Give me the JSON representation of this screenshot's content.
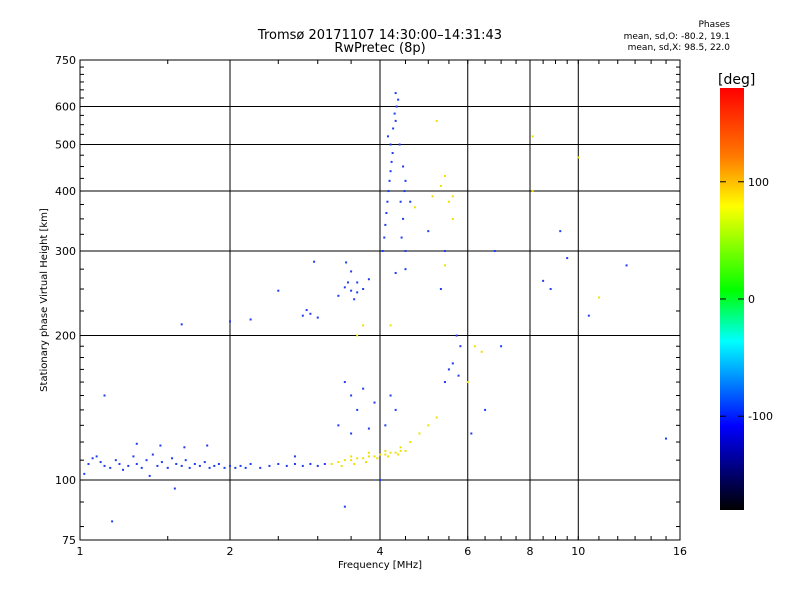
{
  "header": {
    "title_line1": "Tromsø 20171107 14:30:00–14:31:43",
    "title_line2": "RwPretec (8p)",
    "phases_title": "Phases",
    "phases_o": "mean, sd,O: -80.2, 19.1",
    "phases_x": "mean, sd,X:  98.5, 22.0"
  },
  "colorbar": {
    "label": "[deg]",
    "min": -180,
    "max": 180,
    "ticks": [
      {
        "value": 100,
        "label": "100"
      },
      {
        "value": 0,
        "label": "0"
      },
      {
        "value": -100,
        "label": "-100"
      }
    ]
  },
  "chart_data": {
    "type": "scatter",
    "xlabel": "Frequency [MHz]",
    "ylabel": "Stationary phase Virtual Height [km]",
    "xscale": "log",
    "yscale": "log",
    "xlim": [
      1,
      16
    ],
    "ylim": [
      75,
      750
    ],
    "x_ticks": [
      1,
      2,
      4,
      6,
      8,
      10,
      16
    ],
    "y_ticks": [
      75,
      100,
      200,
      300,
      400,
      500,
      600,
      750
    ],
    "x_major_grid": [
      2,
      4,
      6,
      8,
      10
    ],
    "y_major_grid": [
      100,
      200,
      300,
      400,
      500,
      600
    ],
    "grid": true,
    "series": [
      {
        "mode": "O",
        "color": "#1e3cf0",
        "points": [
          [
            1.02,
            103
          ],
          [
            1.04,
            108
          ],
          [
            1.06,
            111
          ],
          [
            1.08,
            112
          ],
          [
            1.1,
            109
          ],
          [
            1.12,
            107
          ],
          [
            1.15,
            106
          ],
          [
            1.18,
            110
          ],
          [
            1.2,
            108
          ],
          [
            1.22,
            105
          ],
          [
            1.25,
            107
          ],
          [
            1.28,
            112
          ],
          [
            1.3,
            108
          ],
          [
            1.33,
            106
          ],
          [
            1.36,
            110
          ],
          [
            1.4,
            113
          ],
          [
            1.43,
            107
          ],
          [
            1.46,
            109
          ],
          [
            1.5,
            106
          ],
          [
            1.53,
            111
          ],
          [
            1.56,
            108
          ],
          [
            1.6,
            107
          ],
          [
            1.63,
            110
          ],
          [
            1.66,
            106
          ],
          [
            1.7,
            108
          ],
          [
            1.74,
            107
          ],
          [
            1.78,
            109
          ],
          [
            1.82,
            106
          ],
          [
            1.86,
            107
          ],
          [
            1.9,
            108
          ],
          [
            1.95,
            106
          ],
          [
            2.0,
            107
          ],
          [
            2.05,
            106
          ],
          [
            2.1,
            107
          ],
          [
            2.15,
            106
          ],
          [
            2.2,
            108
          ],
          [
            2.3,
            106
          ],
          [
            2.4,
            107
          ],
          [
            2.5,
            108
          ],
          [
            2.6,
            107
          ],
          [
            2.7,
            108
          ],
          [
            2.8,
            107
          ],
          [
            2.9,
            108
          ],
          [
            3.0,
            107
          ],
          [
            3.1,
            108
          ],
          [
            1.3,
            119
          ],
          [
            1.45,
            118
          ],
          [
            1.62,
            117
          ],
          [
            1.8,
            118
          ],
          [
            1.38,
            102
          ],
          [
            1.55,
            96
          ],
          [
            1.16,
            82
          ],
          [
            1.12,
            150
          ],
          [
            1.6,
            211
          ],
          [
            2.5,
            248
          ],
          [
            2.0,
            214
          ],
          [
            2.2,
            216
          ],
          [
            2.8,
            220
          ],
          [
            2.85,
            226
          ],
          [
            2.9,
            222
          ],
          [
            3.0,
            218
          ],
          [
            3.3,
            242
          ],
          [
            3.4,
            252
          ],
          [
            3.45,
            258
          ],
          [
            3.5,
            248
          ],
          [
            3.55,
            238
          ],
          [
            3.6,
            246
          ],
          [
            3.42,
            284
          ],
          [
            3.5,
            272
          ],
          [
            3.6,
            258
          ],
          [
            3.7,
            250
          ],
          [
            3.8,
            262
          ],
          [
            3.4,
            160
          ],
          [
            3.5,
            150
          ],
          [
            3.6,
            140
          ],
          [
            3.7,
            155
          ],
          [
            3.3,
            130
          ],
          [
            3.5,
            125
          ],
          [
            3.8,
            128
          ],
          [
            3.9,
            145
          ],
          [
            3.4,
            88
          ],
          [
            4.0,
            100
          ],
          [
            2.7,
            112
          ],
          [
            2.95,
            285
          ],
          [
            4.05,
            300
          ],
          [
            4.08,
            320
          ],
          [
            4.1,
            340
          ],
          [
            4.12,
            360
          ],
          [
            4.14,
            380
          ],
          [
            4.16,
            400
          ],
          [
            4.18,
            420
          ],
          [
            4.2,
            440
          ],
          [
            4.22,
            460
          ],
          [
            4.24,
            480
          ],
          [
            4.2,
            500
          ],
          [
            4.15,
            520
          ],
          [
            4.25,
            540
          ],
          [
            4.3,
            560
          ],
          [
            4.28,
            580
          ],
          [
            4.32,
            600
          ],
          [
            4.35,
            620
          ],
          [
            4.3,
            640
          ],
          [
            4.4,
            380
          ],
          [
            4.45,
            350
          ],
          [
            4.42,
            320
          ],
          [
            4.5,
            300
          ],
          [
            4.38,
            500
          ],
          [
            4.45,
            450
          ],
          [
            4.5,
            420
          ],
          [
            4.48,
            400
          ],
          [
            4.6,
            380
          ],
          [
            4.3,
            270
          ],
          [
            4.5,
            275
          ],
          [
            4.2,
            150
          ],
          [
            4.3,
            140
          ],
          [
            4.1,
            130
          ],
          [
            5.0,
            330
          ],
          [
            5.4,
            300
          ],
          [
            5.5,
            170
          ],
          [
            5.6,
            175
          ],
          [
            5.7,
            200
          ],
          [
            5.75,
            165
          ],
          [
            5.8,
            190
          ],
          [
            5.4,
            160
          ],
          [
            5.3,
            250
          ],
          [
            6.1,
            125
          ],
          [
            6.5,
            140
          ],
          [
            6.8,
            300
          ],
          [
            7.0,
            190
          ],
          [
            8.5,
            260
          ],
          [
            8.8,
            250
          ],
          [
            9.2,
            330
          ],
          [
            9.5,
            290
          ],
          [
            10.5,
            220
          ],
          [
            15,
            122
          ],
          [
            12.5,
            280
          ]
        ]
      },
      {
        "mode": "X",
        "color": "#f0e000",
        "points": [
          [
            3.2,
            108
          ],
          [
            3.3,
            109
          ],
          [
            3.4,
            110
          ],
          [
            3.5,
            110
          ],
          [
            3.6,
            111
          ],
          [
            3.7,
            111
          ],
          [
            3.8,
            112
          ],
          [
            3.9,
            112
          ],
          [
            4.0,
            113
          ],
          [
            4.1,
            113
          ],
          [
            4.2,
            114
          ],
          [
            4.3,
            114
          ],
          [
            4.4,
            115
          ],
          [
            4.5,
            115
          ],
          [
            3.35,
            107
          ],
          [
            3.55,
            108
          ],
          [
            3.75,
            109
          ],
          [
            3.95,
            111
          ],
          [
            4.15,
            112
          ],
          [
            4.35,
            113
          ],
          [
            3.5,
            112
          ],
          [
            3.8,
            114
          ],
          [
            4.1,
            115
          ],
          [
            4.4,
            117
          ],
          [
            4.6,
            120
          ],
          [
            4.8,
            125
          ],
          [
            5.0,
            130
          ],
          [
            5.2,
            135
          ],
          [
            5.5,
            380
          ],
          [
            5.3,
            410
          ],
          [
            5.1,
            390
          ],
          [
            4.7,
            370
          ],
          [
            5.4,
            430
          ],
          [
            5.6,
            350
          ],
          [
            5.4,
            280
          ],
          [
            5.2,
            560
          ],
          [
            5.6,
            390
          ],
          [
            3.6,
            200
          ],
          [
            3.7,
            210
          ],
          [
            8.1,
            520
          ],
          [
            8.1,
            400
          ],
          [
            10,
            470
          ],
          [
            11,
            240
          ],
          [
            6.2,
            190
          ],
          [
            6.0,
            160
          ],
          [
            6.4,
            185
          ],
          [
            4.2,
            210
          ]
        ]
      }
    ]
  }
}
